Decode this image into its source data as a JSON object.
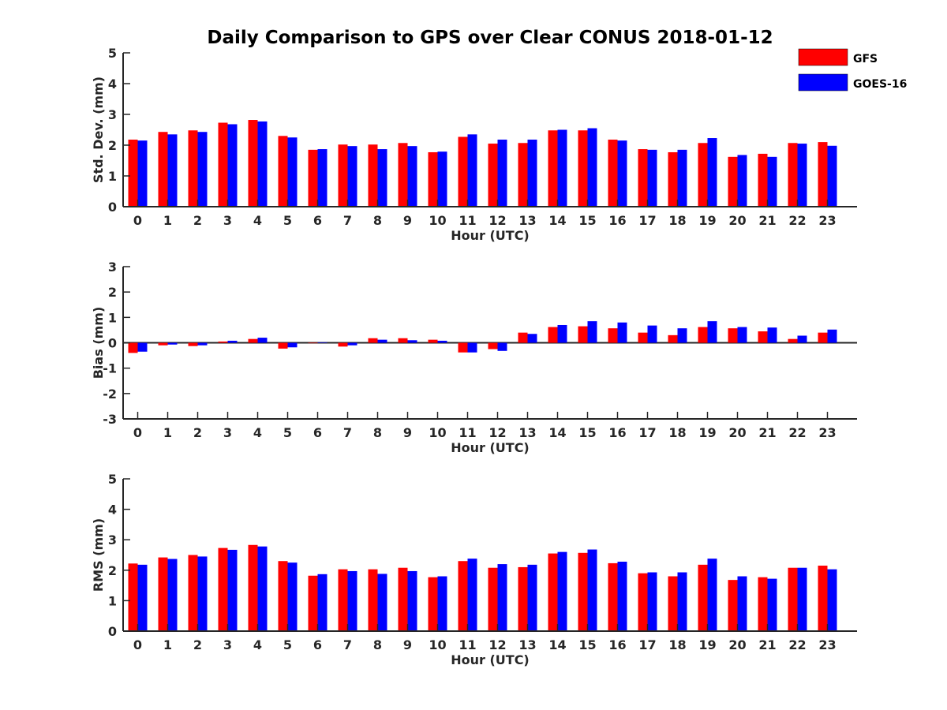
{
  "title": "Daily Comparison to GPS over Clear CONUS 2018-01-12",
  "legend": {
    "placement": "top-right",
    "entries": [
      {
        "name": "GFS",
        "color": "#ff0000"
      },
      {
        "name": "GOES-16",
        "color": "#0000ff"
      }
    ]
  },
  "chart_data": [
    {
      "type": "bar",
      "title": "Daily Comparison to GPS over Clear CONUS 2018-01-12",
      "xlabel": "Hour (UTC)",
      "ylabel": "Std. Dev. (mm)",
      "ylim": [
        0,
        5
      ],
      "yticks": [
        "0",
        "1",
        "2",
        "3",
        "4",
        "5"
      ],
      "categories": [
        "0",
        "1",
        "2",
        "3",
        "4",
        "5",
        "6",
        "7",
        "8",
        "9",
        "10",
        "11",
        "12",
        "13",
        "14",
        "15",
        "16",
        "17",
        "18",
        "19",
        "20",
        "21",
        "22",
        "23"
      ],
      "series": [
        {
          "name": "GFS",
          "color": "#ff0000",
          "values": [
            2.18,
            2.43,
            2.48,
            2.73,
            2.82,
            2.3,
            1.85,
            2.02,
            2.02,
            2.07,
            1.77,
            2.27,
            2.05,
            2.07,
            2.48,
            2.48,
            2.18,
            1.87,
            1.77,
            2.07,
            1.62,
            1.72,
            2.07,
            2.1
          ]
        },
        {
          "name": "GOES-16",
          "color": "#0000ff",
          "values": [
            2.15,
            2.35,
            2.43,
            2.68,
            2.77,
            2.25,
            1.87,
            1.97,
            1.87,
            1.97,
            1.79,
            2.35,
            2.18,
            2.18,
            2.5,
            2.55,
            2.15,
            1.85,
            1.85,
            2.23,
            1.68,
            1.62,
            2.05,
            1.98
          ]
        }
      ]
    },
    {
      "type": "bar",
      "xlabel": "Hour (UTC)",
      "ylabel": "Bias (mm)",
      "ylim": [
        -3,
        3
      ],
      "yticks": [
        "-3",
        "-2",
        "-1",
        "0",
        "1",
        "2",
        "3"
      ],
      "categories": [
        "0",
        "1",
        "2",
        "3",
        "4",
        "5",
        "6",
        "7",
        "8",
        "9",
        "10",
        "11",
        "12",
        "13",
        "14",
        "15",
        "16",
        "17",
        "18",
        "19",
        "20",
        "21",
        "22",
        "23"
      ],
      "series": [
        {
          "name": "GFS",
          "color": "#ff0000",
          "values": [
            -0.4,
            -0.1,
            -0.13,
            0.05,
            0.15,
            -0.23,
            0.0,
            -0.15,
            0.18,
            0.18,
            0.12,
            -0.38,
            -0.25,
            0.4,
            0.62,
            0.65,
            0.57,
            0.4,
            0.3,
            0.62,
            0.57,
            0.45,
            0.15,
            0.4
          ]
        },
        {
          "name": "GOES-16",
          "color": "#0000ff",
          "values": [
            -0.35,
            -0.07,
            -0.1,
            0.08,
            0.2,
            -0.18,
            0.02,
            -0.1,
            0.12,
            0.1,
            0.08,
            -0.38,
            -0.32,
            0.35,
            0.7,
            0.85,
            0.8,
            0.68,
            0.57,
            0.85,
            0.62,
            0.6,
            0.28,
            0.52
          ]
        }
      ]
    },
    {
      "type": "bar",
      "xlabel": "Hour (UTC)",
      "ylabel": "RMS (mm)",
      "ylim": [
        0,
        5
      ],
      "yticks": [
        "0",
        "1",
        "2",
        "3",
        "4",
        "5"
      ],
      "categories": [
        "0",
        "1",
        "2",
        "3",
        "4",
        "5",
        "6",
        "7",
        "8",
        "9",
        "10",
        "11",
        "12",
        "13",
        "14",
        "15",
        "16",
        "17",
        "18",
        "19",
        "20",
        "21",
        "22",
        "23"
      ],
      "series": [
        {
          "name": "GFS",
          "color": "#ff0000",
          "values": [
            2.22,
            2.42,
            2.5,
            2.73,
            2.83,
            2.3,
            1.82,
            2.03,
            2.03,
            2.08,
            1.77,
            2.3,
            2.08,
            2.1,
            2.55,
            2.57,
            2.23,
            1.9,
            1.8,
            2.18,
            1.68,
            1.77,
            2.08,
            2.15
          ]
        },
        {
          "name": "GOES-16",
          "color": "#0000ff",
          "values": [
            2.18,
            2.37,
            2.45,
            2.67,
            2.78,
            2.25,
            1.87,
            1.97,
            1.88,
            1.97,
            1.8,
            2.38,
            2.2,
            2.18,
            2.6,
            2.68,
            2.28,
            1.93,
            1.93,
            2.38,
            1.8,
            1.72,
            2.08,
            2.03
          ]
        }
      ]
    }
  ]
}
